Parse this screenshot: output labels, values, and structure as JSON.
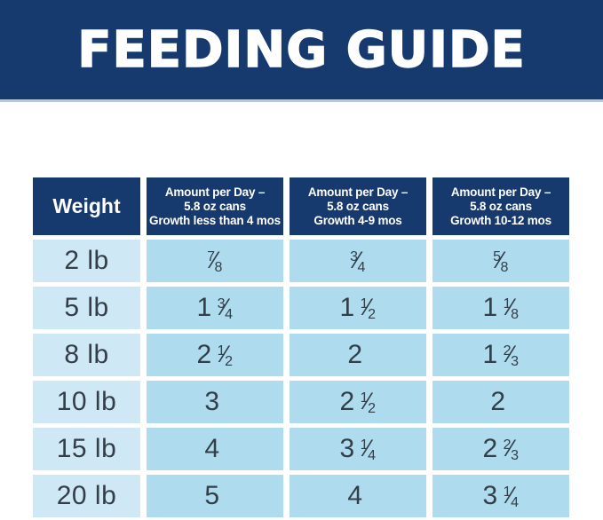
{
  "banner": {
    "title": "FEEDING GUIDE"
  },
  "colors": {
    "navy": "#163a6e",
    "banner_bottom_border": "#b9c7d9",
    "weight_cell_bg": "#cfe8f6",
    "value_cell_bg": "#aedbee",
    "cell_text": "#333e48",
    "header_text": "#ffffff"
  },
  "table": {
    "fraction_slash": "⁄",
    "headers": [
      {
        "lines": [
          "Weight"
        ]
      },
      {
        "lines": [
          "Amount per Day –",
          "5.8 oz cans",
          "Growth less than 4 mos"
        ]
      },
      {
        "lines": [
          "Amount per Day –",
          "5.8 oz cans",
          "Growth 4-9 mos"
        ]
      },
      {
        "lines": [
          "Amount per Day –",
          "5.8 oz cans",
          "Growth 10-12 mos"
        ]
      }
    ],
    "rows": [
      {
        "weight": "2 lb",
        "values": [
          {
            "whole": "",
            "num": "7",
            "den": "8"
          },
          {
            "whole": "",
            "num": "3",
            "den": "4"
          },
          {
            "whole": "",
            "num": "5",
            "den": "8"
          }
        ]
      },
      {
        "weight": "5 lb",
        "values": [
          {
            "whole": "1",
            "num": "3",
            "den": "4"
          },
          {
            "whole": "1",
            "num": "1",
            "den": "2"
          },
          {
            "whole": "1",
            "num": "1",
            "den": "8"
          }
        ]
      },
      {
        "weight": "8 lb",
        "values": [
          {
            "whole": "2",
            "num": "1",
            "den": "2"
          },
          {
            "whole": "2",
            "num": "",
            "den": ""
          },
          {
            "whole": "1",
            "num": "2",
            "den": "3"
          }
        ]
      },
      {
        "weight": "10 lb",
        "values": [
          {
            "whole": "3",
            "num": "",
            "den": ""
          },
          {
            "whole": "2",
            "num": "1",
            "den": "2"
          },
          {
            "whole": "2",
            "num": "",
            "den": ""
          }
        ]
      },
      {
        "weight": "15 lb",
        "values": [
          {
            "whole": "4",
            "num": "",
            "den": ""
          },
          {
            "whole": "3",
            "num": "1",
            "den": "4"
          },
          {
            "whole": "2",
            "num": "2",
            "den": "3"
          }
        ]
      },
      {
        "weight": "20 lb",
        "values": [
          {
            "whole": "5",
            "num": "",
            "den": ""
          },
          {
            "whole": "4",
            "num": "",
            "den": ""
          },
          {
            "whole": "3",
            "num": "1",
            "den": "4"
          }
        ]
      }
    ]
  },
  "chart_data": {
    "type": "table",
    "title": "FEEDING GUIDE",
    "columns": [
      "Weight",
      "Amount per Day – 5.8 oz cans Growth less than 4 mos",
      "Amount per Day – 5.8 oz cans Growth 4-9 mos",
      "Amount per Day – 5.8 oz cans Growth 10-12 mos"
    ],
    "rows": [
      [
        "2 lb",
        "7/8",
        "3/4",
        "5/8"
      ],
      [
        "5 lb",
        "1 3/4",
        "1 1/2",
        "1 1/8"
      ],
      [
        "8 lb",
        "2 1/2",
        "2",
        "1 2/3"
      ],
      [
        "10 lb",
        "3",
        "2 1/2",
        "2"
      ],
      [
        "15 lb",
        "4",
        "3 1/4",
        "2 2/3"
      ],
      [
        "20 lb",
        "5",
        "4",
        "3 1/4"
      ]
    ]
  }
}
